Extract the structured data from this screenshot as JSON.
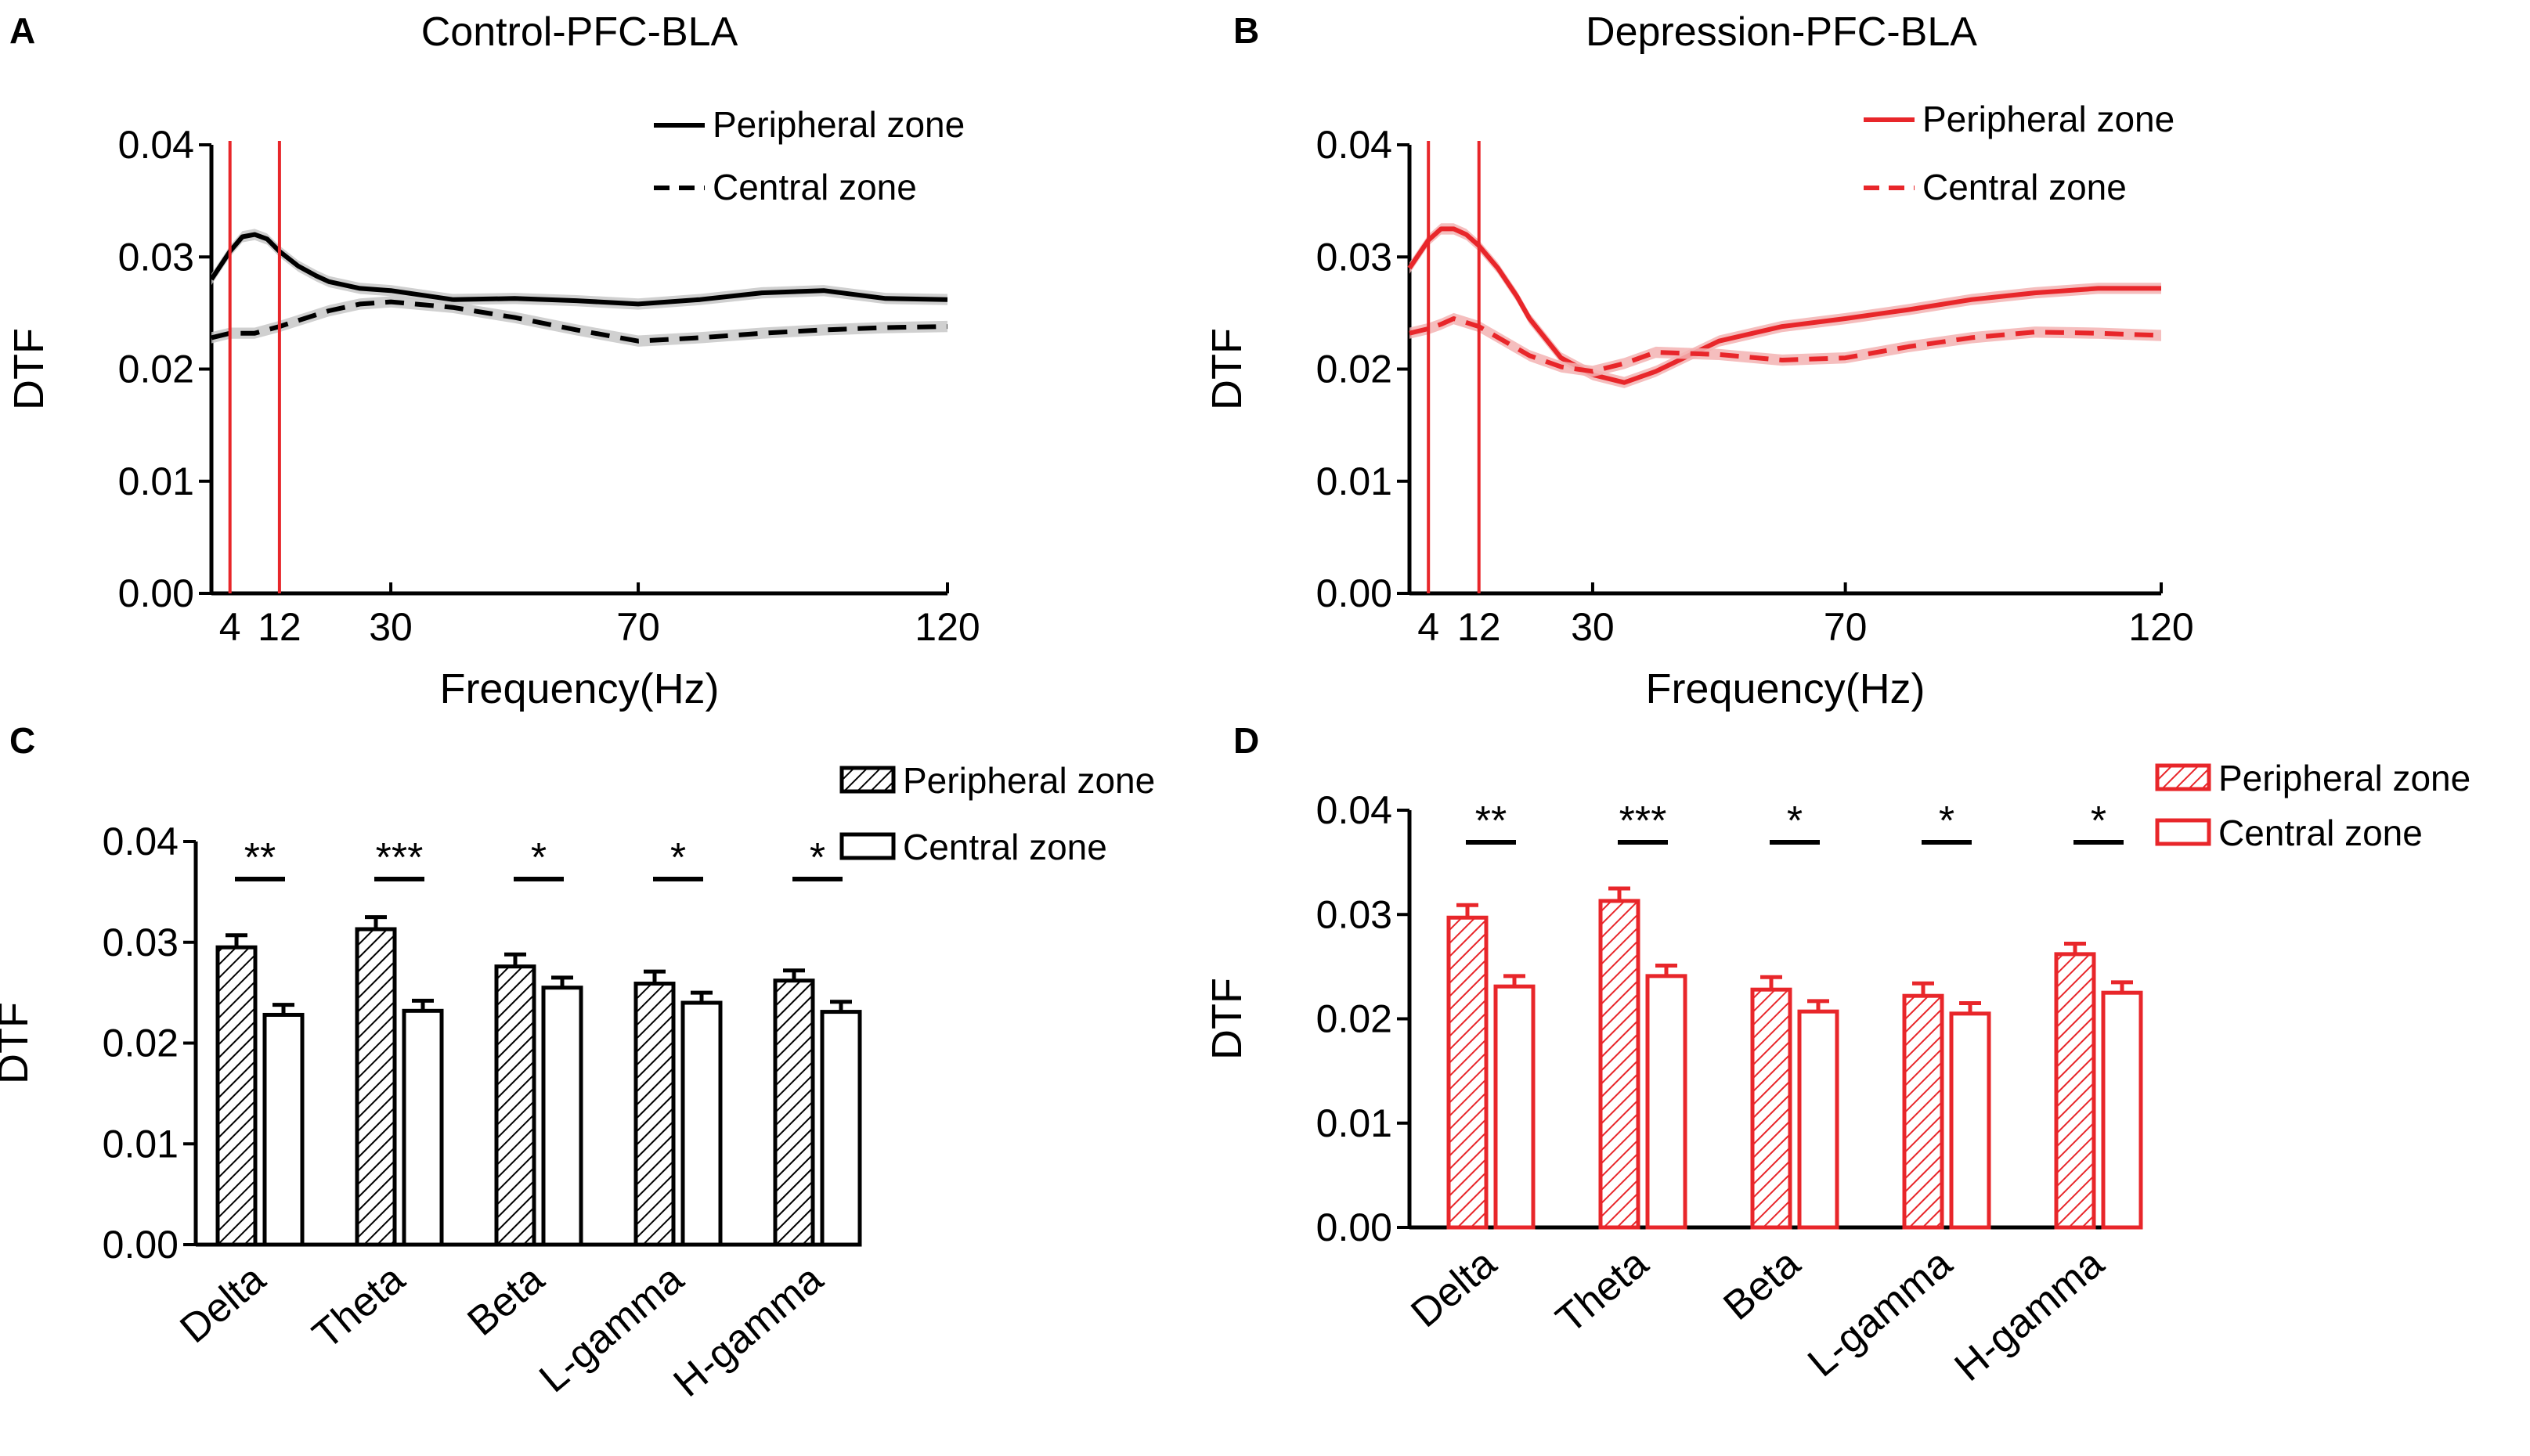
{
  "figure": {
    "panels": [
      "A",
      "B",
      "C",
      "D"
    ]
  },
  "chart_data": [
    {
      "id": "A",
      "type": "line",
      "title": "Control-PFC-BLA",
      "xlabel": "Frequency(Hz)",
      "ylabel": "DTF",
      "ylim": [
        0,
        0.04
      ],
      "xlim": [
        1,
        120
      ],
      "xticks": [
        4,
        12,
        30,
        70,
        120
      ],
      "yticks": [
        "0.00",
        "0.01",
        "0.02",
        "0.03",
        "0.04"
      ],
      "vlines": [
        4,
        12
      ],
      "color": "#000000",
      "vline_color": "#e8262a",
      "legend": [
        "Peripheral zone",
        "Central zone"
      ],
      "series": [
        {
          "name": "Peripheral zone",
          "x": [
            1,
            4,
            6,
            8,
            10,
            12,
            15,
            18,
            20,
            25,
            30,
            40,
            50,
            60,
            70,
            80,
            90,
            100,
            110,
            120
          ],
          "values": [
            0.028,
            0.0305,
            0.0318,
            0.032,
            0.0316,
            0.0305,
            0.0292,
            0.0283,
            0.0278,
            0.0272,
            0.027,
            0.0262,
            0.0263,
            0.0261,
            0.0258,
            0.0262,
            0.0268,
            0.027,
            0.0263,
            0.0262
          ]
        },
        {
          "name": "Central zone",
          "x": [
            1,
            4,
            8,
            12,
            16,
            20,
            25,
            30,
            40,
            50,
            60,
            70,
            80,
            90,
            100,
            110,
            120
          ],
          "values": [
            0.0228,
            0.0232,
            0.0232,
            0.0238,
            0.0245,
            0.0252,
            0.0258,
            0.026,
            0.0255,
            0.0246,
            0.0235,
            0.0225,
            0.0228,
            0.0232,
            0.0235,
            0.0237,
            0.0238
          ]
        }
      ]
    },
    {
      "id": "B",
      "type": "line",
      "title": "Depression-PFC-BLA",
      "xlabel": "Frequency(Hz)",
      "ylabel": "DTF",
      "ylim": [
        0,
        0.04
      ],
      "xlim": [
        1,
        120
      ],
      "xticks": [
        4,
        12,
        30,
        70,
        120
      ],
      "yticks": [
        "0.00",
        "0.01",
        "0.02",
        "0.03",
        "0.04"
      ],
      "vlines": [
        4,
        12
      ],
      "color": "#e8262a",
      "vline_color": "#e8262a",
      "legend": [
        "Peripheral zone",
        "Central zone"
      ],
      "series": [
        {
          "name": "Peripheral zone",
          "x": [
            1,
            4,
            6,
            8,
            10,
            12,
            15,
            18,
            20,
            25,
            30,
            35,
            40,
            50,
            60,
            70,
            80,
            90,
            100,
            110,
            120
          ],
          "values": [
            0.029,
            0.0315,
            0.0325,
            0.0325,
            0.032,
            0.031,
            0.029,
            0.0265,
            0.0245,
            0.021,
            0.0195,
            0.0188,
            0.0198,
            0.0225,
            0.0238,
            0.0245,
            0.0253,
            0.0262,
            0.0268,
            0.0272,
            0.0272
          ]
        },
        {
          "name": "Central zone",
          "x": [
            1,
            4,
            6,
            8,
            12,
            16,
            20,
            25,
            30,
            35,
            40,
            50,
            60,
            70,
            80,
            90,
            100,
            110,
            120
          ],
          "values": [
            0.0232,
            0.0236,
            0.024,
            0.0245,
            0.0238,
            0.0225,
            0.0212,
            0.0202,
            0.0198,
            0.0205,
            0.0215,
            0.0213,
            0.0208,
            0.021,
            0.022,
            0.0228,
            0.0233,
            0.0232,
            0.023
          ]
        }
      ]
    },
    {
      "id": "C",
      "type": "bar",
      "ylabel": "DTF",
      "ylim": [
        0,
        0.04
      ],
      "yticks": [
        "0.00",
        "0.01",
        "0.02",
        "0.03",
        "0.04"
      ],
      "categories": [
        "Delta",
        "Theta",
        "Beta",
        "L-gamma",
        "H-gamma"
      ],
      "significance": [
        "**",
        "***",
        "*",
        "*",
        "*"
      ],
      "color": "#000000",
      "legend": [
        "Peripheral zone",
        "Central zone"
      ],
      "series": [
        {
          "name": "Peripheral zone",
          "values": [
            0.0295,
            0.0313,
            0.0276,
            0.0259,
            0.0262
          ],
          "errors": [
            0.0012,
            0.0012,
            0.0012,
            0.0012,
            0.001
          ]
        },
        {
          "name": "Central zone",
          "values": [
            0.0228,
            0.0232,
            0.0255,
            0.024,
            0.0231
          ],
          "errors": [
            0.001,
            0.001,
            0.001,
            0.001,
            0.001
          ]
        }
      ]
    },
    {
      "id": "D",
      "type": "bar",
      "ylabel": "DTF",
      "ylim": [
        0,
        0.04
      ],
      "yticks": [
        "0.00",
        "0.01",
        "0.02",
        "0.03",
        "0.04"
      ],
      "categories": [
        "Delta",
        "Theta",
        "Beta",
        "L-gamma",
        "H-gamma"
      ],
      "significance": [
        "**",
        "***",
        "*",
        "*",
        "*"
      ],
      "color": "#e8262a",
      "legend": [
        "Peripheral zone",
        "Central zone"
      ],
      "series": [
        {
          "name": "Peripheral zone",
          "values": [
            0.0297,
            0.0313,
            0.0228,
            0.0222,
            0.0262
          ],
          "errors": [
            0.0012,
            0.0012,
            0.0012,
            0.0012,
            0.001
          ]
        },
        {
          "name": "Central zone",
          "values": [
            0.0231,
            0.0241,
            0.0207,
            0.0205,
            0.0225
          ],
          "errors": [
            0.001,
            0.001,
            0.001,
            0.001,
            0.001
          ]
        }
      ]
    }
  ]
}
